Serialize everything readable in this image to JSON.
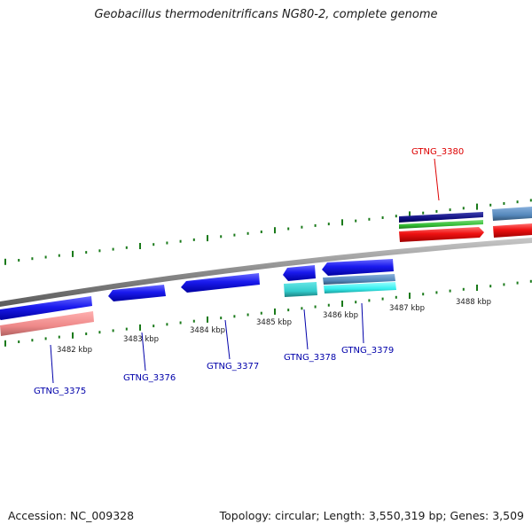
{
  "title": "Geobacillus thermodenitrificans NG80-2, complete genome",
  "footer": {
    "accession": "Accession: NC_009328",
    "summary": "Topology: circular; Length: 3,550,319 bp; Genes: 3,509"
  },
  "scale_labels": [
    "3482 kbp",
    "3483 kbp",
    "3484 kbp",
    "3485 kbp",
    "3486 kbp",
    "3487 kbp",
    "3488 kbp"
  ],
  "genes": [
    {
      "id": "GTNG_3375",
      "color": "#0000aa"
    },
    {
      "id": "GTNG_3376",
      "color": "#0000aa"
    },
    {
      "id": "GTNG_3377",
      "color": "#0000aa"
    },
    {
      "id": "GTNG_3378",
      "color": "#0000aa"
    },
    {
      "id": "GTNG_3379",
      "color": "#0000aa"
    },
    {
      "id": "GTNG_3380",
      "color": "#dd0000"
    }
  ],
  "colors": {
    "backbone": "#808080",
    "tick": "#1a7a1a",
    "gene_blue": "#1a1aee",
    "gene_red": "#ee1111",
    "gene_pink": "#ee8888",
    "gene_cyan": "#33cccc",
    "gene_steel": "#5588bb",
    "gene_green": "#33bb33",
    "gene_navy": "#101080"
  }
}
